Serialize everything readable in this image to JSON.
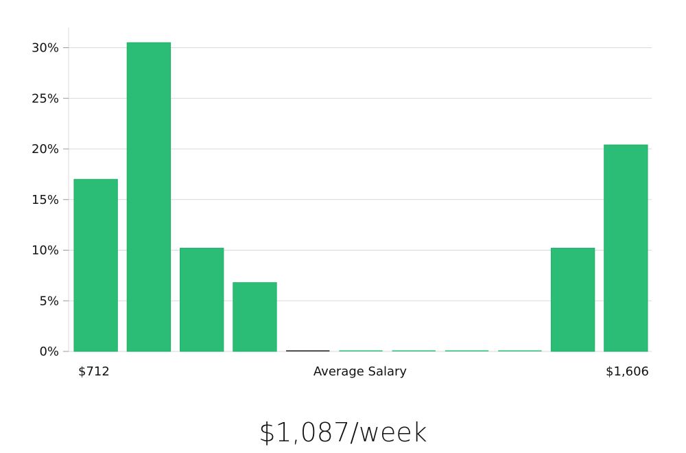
{
  "chart_data": {
    "type": "bar",
    "title": "",
    "xlabel": "Average Salary",
    "ylabel": "",
    "x_min_label": "$712",
    "x_max_label": "$1,606",
    "ylim": [
      0,
      32
    ],
    "yticks": [
      0,
      5,
      10,
      15,
      20,
      25,
      30
    ],
    "ytick_labels": [
      "0%",
      "5%",
      "10%",
      "15%",
      "20%",
      "25%",
      "30%"
    ],
    "values": [
      17.0,
      30.5,
      10.2,
      6.8,
      0,
      0,
      0,
      0,
      0,
      10.2,
      20.4
    ],
    "bar_color": "#2bbd76",
    "zero_bar_colors": [
      "#1a1a1a",
      "#2bbd76",
      "#2bbd76",
      "#2bbd76",
      "#2bbd76"
    ],
    "grid": true
  },
  "summary": {
    "value": "$1,087/week"
  }
}
